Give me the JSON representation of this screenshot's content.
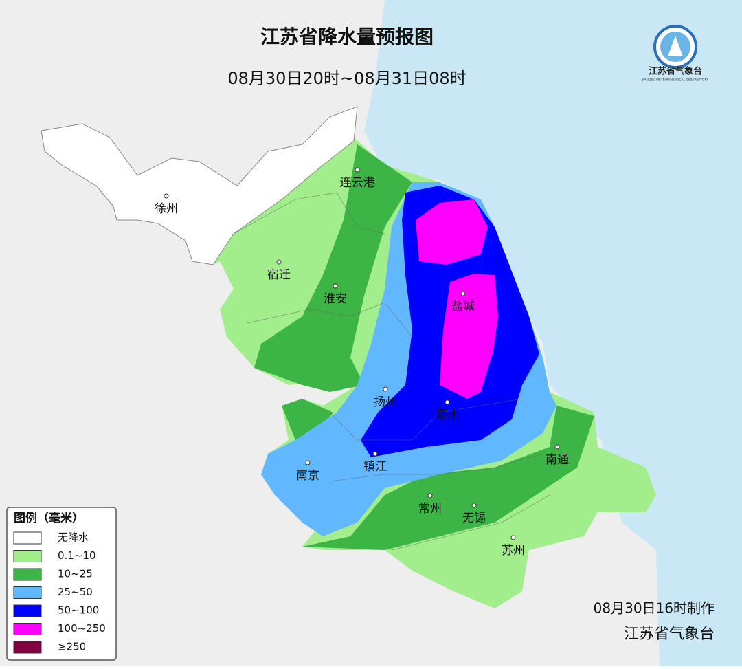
{
  "header": {
    "title": "江苏省降水量预报图",
    "subtitle": "08月30日20时~08月31日08时"
  },
  "logo": {
    "name": "江苏省气象台",
    "english": "JIANGSU METEOROLOGICAL OBSERVATORY"
  },
  "cities": [
    "徐州",
    "连云港",
    "宿迁",
    "淮安",
    "盐城",
    "扬州",
    "泰州",
    "南京",
    "镇江",
    "南通",
    "常州",
    "无锡",
    "苏州"
  ],
  "legend": {
    "title": "图例（毫米）",
    "items": [
      {
        "label": "无降水",
        "color": "#ffffff"
      },
      {
        "label": "0.1~10",
        "color": "#a3ee8c"
      },
      {
        "label": "10~25",
        "color": "#3cb446"
      },
      {
        "label": "25~50",
        "color": "#62b8ff"
      },
      {
        "label": "50~100",
        "color": "#0000fe"
      },
      {
        "label": "100~250",
        "color": "#ff00ff"
      },
      {
        "label": "≥250",
        "color": "#800040"
      }
    ]
  },
  "footer": {
    "made": "08月30日16时制作",
    "issuer": "江苏省气象台"
  }
}
